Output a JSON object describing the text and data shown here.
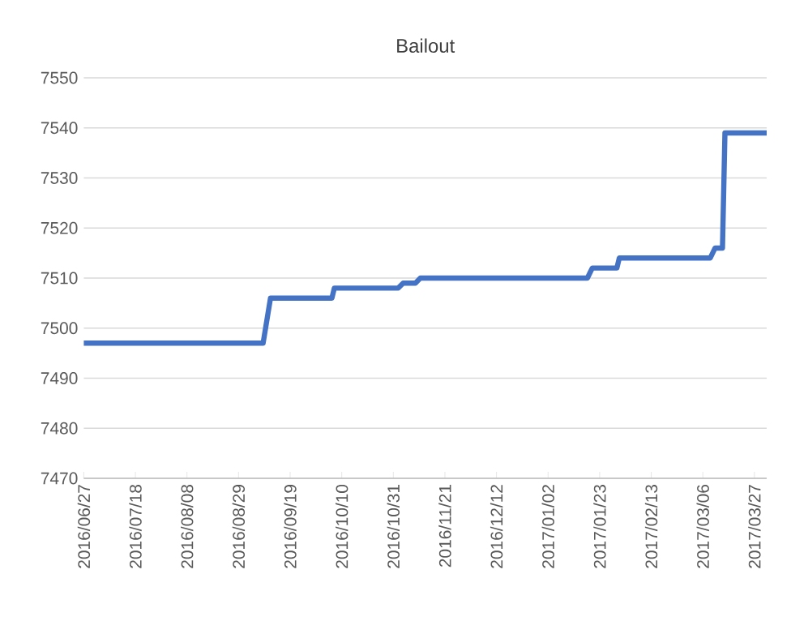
{
  "chart_data": {
    "type": "line",
    "title": "Bailout",
    "x": [
      "2016-06-27",
      "2016-09-08",
      "2016-09-11",
      "2016-10-06",
      "2016-10-07",
      "2016-11-02",
      "2016-11-04",
      "2016-11-09",
      "2016-11-11",
      "2017-01-18",
      "2017-01-20",
      "2017-01-30",
      "2017-01-31",
      "2017-03-09",
      "2017-03-11",
      "2017-03-14",
      "2017-03-15",
      "2017-04-01"
    ],
    "series": [
      {
        "color": "#4472c4",
        "values": [
          7497,
          7497,
          7506,
          7506,
          7508,
          7508,
          7509,
          7509,
          7510,
          7510,
          7512,
          7512,
          7514,
          7514,
          7516,
          7516,
          7539,
          7539
        ]
      }
    ],
    "xlim": [
      "2016-06-27",
      "2017-04-01"
    ],
    "xticks": [
      {
        "value": "2016-06-27",
        "label": "2016/06/27"
      },
      {
        "value": "2016-07-18",
        "label": "2016/07/18"
      },
      {
        "value": "2016-08-08",
        "label": "2016/08/08"
      },
      {
        "value": "2016-08-29",
        "label": "2016/08/29"
      },
      {
        "value": "2016-09-19",
        "label": "2016/09/19"
      },
      {
        "value": "2016-10-10",
        "label": "2016/10/10"
      },
      {
        "value": "2016-10-31",
        "label": "2016/10/31"
      },
      {
        "value": "2016-11-21",
        "label": "2016/11/21"
      },
      {
        "value": "2016-12-12",
        "label": "2016/12/12"
      },
      {
        "value": "2017-01-02",
        "label": "2017/01/02"
      },
      {
        "value": "2017-01-23",
        "label": "2017/01/23"
      },
      {
        "value": "2017-02-13",
        "label": "2017/02/13"
      },
      {
        "value": "2017-03-06",
        "label": "2017/03/06"
      },
      {
        "value": "2017-03-27",
        "label": "2017/03/27"
      }
    ],
    "ylim": [
      7470,
      7550
    ],
    "yticks": [
      7470,
      7480,
      7490,
      7500,
      7510,
      7520,
      7530,
      7540,
      7550
    ],
    "grid": "y",
    "legend": false,
    "marker": "none",
    "line_style": "solid"
  }
}
